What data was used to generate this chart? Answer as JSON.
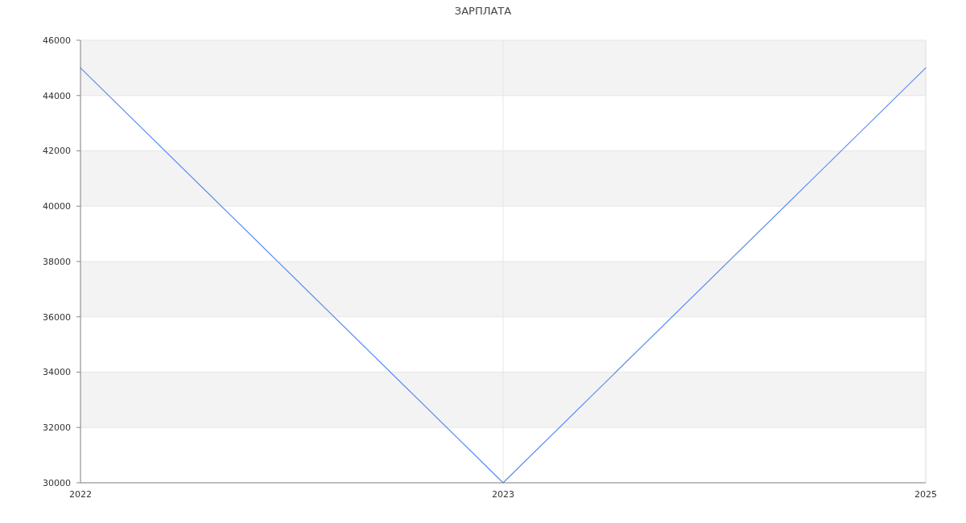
{
  "chart_data": {
    "type": "line",
    "title": "ЗАРПЛАТА",
    "categories": [
      "2022",
      "2023",
      "2025"
    ],
    "values": [
      45000,
      30000,
      45000
    ],
    "color": "#5b8def",
    "ylim": [
      30000,
      46000
    ],
    "yticks": [
      30000,
      32000,
      34000,
      36000,
      38000,
      40000,
      42000,
      44000,
      46000
    ],
    "grid": true,
    "marker": "none",
    "line_style": "solid"
  }
}
